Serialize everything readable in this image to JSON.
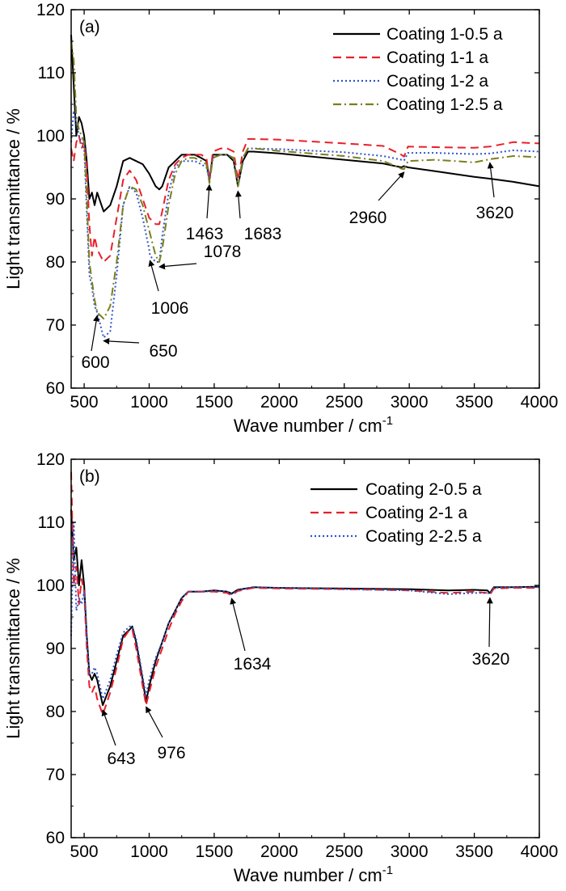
{
  "chart_data": [
    {
      "type": "line",
      "panel_label": "(a)",
      "xlabel": "Wave number / cm",
      "xlabel_sup": "-1",
      "ylabel": "Light transmittance / %",
      "xlim": [
        400,
        4000
      ],
      "ylim": [
        60,
        120
      ],
      "xticks": [
        500,
        1000,
        1500,
        2000,
        2500,
        3000,
        3500,
        4000
      ],
      "yticks": [
        60,
        70,
        80,
        90,
        100,
        110,
        120
      ],
      "grid": false,
      "legend": "top-right",
      "series": [
        {
          "name": "Coating 1-0.5 a",
          "color": "#000000",
          "dash": "solid",
          "x": [
            400,
            420,
            440,
            460,
            480,
            500,
            520,
            540,
            560,
            580,
            600,
            650,
            700,
            750,
            800,
            850,
            900,
            950,
            1000,
            1050,
            1078,
            1100,
            1150,
            1200,
            1250,
            1300,
            1350,
            1400,
            1440,
            1463,
            1490,
            1550,
            1600,
            1650,
            1683,
            1720,
            1760,
            1800,
            2000,
            2500,
            2800,
            2940,
            2960,
            2990,
            3200,
            3500,
            3620,
            3800,
            4000
          ],
          "y": [
            116,
            108,
            100,
            103,
            102,
            100,
            96,
            90,
            91,
            89,
            91,
            88,
            89,
            92,
            96,
            96.5,
            96,
            95.5,
            94,
            92,
            91.5,
            92,
            95,
            96,
            97,
            97,
            97,
            96.5,
            96,
            93,
            97,
            97,
            97,
            96,
            92,
            96,
            97.5,
            97.5,
            97.2,
            96.2,
            95.6,
            95,
            95.2,
            95,
            94.4,
            93.5,
            93.2,
            92.7,
            92
          ]
        },
        {
          "name": "Coating 1-1 a",
          "color": "#e8202a",
          "dash": "dashed",
          "x": [
            400,
            420,
            440,
            460,
            480,
            500,
            520,
            540,
            560,
            580,
            600,
            650,
            700,
            750,
            800,
            850,
            900,
            950,
            1000,
            1050,
            1078,
            1100,
            1150,
            1200,
            1250,
            1300,
            1350,
            1400,
            1440,
            1463,
            1490,
            1550,
            1600,
            1650,
            1683,
            1720,
            1760,
            1800,
            2000,
            2500,
            2800,
            2940,
            2960,
            2990,
            3200,
            3500,
            3620,
            3800,
            4000
          ],
          "y": [
            98,
            96,
            99,
            100,
            98,
            99,
            95,
            86,
            81,
            84,
            82,
            80,
            81,
            87,
            93,
            94.5,
            93,
            90,
            87,
            86,
            86,
            88,
            93,
            95.5,
            96.5,
            97,
            97,
            97,
            96.5,
            93,
            97.5,
            98,
            98,
            97.5,
            93,
            97.5,
            99.5,
            99.5,
            99.4,
            98.8,
            98.4,
            97,
            96.7,
            98.3,
            98.2,
            98.1,
            98.3,
            99,
            98.8
          ]
        },
        {
          "name": "Coating 1-2 a",
          "color": "#2e55c8",
          "dash": "dotted",
          "x": [
            400,
            420,
            440,
            460,
            480,
            500,
            520,
            540,
            560,
            580,
            600,
            650,
            700,
            750,
            800,
            850,
            900,
            950,
            1000,
            1006,
            1050,
            1078,
            1100,
            1150,
            1200,
            1250,
            1300,
            1350,
            1400,
            1440,
            1463,
            1490,
            1550,
            1600,
            1650,
            1683,
            1720,
            1760,
            1800,
            2000,
            2500,
            2800,
            2940,
            2960,
            2990,
            3200,
            3500,
            3620,
            3800,
            4000
          ],
          "y": [
            99,
            104,
            102,
            100,
            99,
            98,
            88,
            78,
            76,
            73,
            72,
            68,
            69,
            78,
            89,
            92,
            91,
            87,
            82,
            81,
            80,
            80,
            84,
            91,
            95,
            96,
            96,
            96,
            95.5,
            95,
            93,
            96.5,
            97,
            97,
            96.5,
            92,
            96.5,
            98,
            98,
            97.9,
            97.4,
            96.8,
            96.2,
            96.1,
            97.3,
            97.3,
            97.1,
            97.2,
            97.7,
            97.5
          ]
        },
        {
          "name": "Coating 1-2.5 a",
          "color": "#7a7f1e",
          "dash": "dashdot",
          "x": [
            400,
            420,
            440,
            460,
            480,
            500,
            520,
            540,
            560,
            580,
            600,
            650,
            700,
            750,
            800,
            850,
            900,
            950,
            1000,
            1050,
            1078,
            1100,
            1150,
            1200,
            1250,
            1300,
            1350,
            1400,
            1440,
            1463,
            1490,
            1550,
            1600,
            1650,
            1683,
            1720,
            1760,
            1800,
            2000,
            2500,
            2800,
            2940,
            2960,
            2990,
            3200,
            3500,
            3620,
            3800,
            4000
          ],
          "y": [
            115,
            112,
            103,
            101,
            100,
            99,
            90,
            80,
            77,
            74,
            72,
            71,
            73,
            80,
            89,
            92,
            91.5,
            89,
            85,
            81,
            80,
            82,
            89,
            94,
            96,
            96.5,
            96.5,
            96,
            95.5,
            92.5,
            96.5,
            97,
            97,
            96.5,
            92,
            96.5,
            98,
            98,
            97.6,
            96.8,
            96,
            94.8,
            94.7,
            96,
            96.2,
            95.8,
            96.3,
            96.8,
            96.6
          ]
        }
      ],
      "annotations": [
        {
          "text": "600",
          "x": 600,
          "y": 72
        },
        {
          "text": "650",
          "x": 650,
          "y": 68
        },
        {
          "text": "1006",
          "x": 1006,
          "y": 81
        },
        {
          "text": "1078",
          "x": 1078,
          "y": 80
        },
        {
          "text": "1463",
          "x": 1463,
          "y": 93
        },
        {
          "text": "1683",
          "x": 1683,
          "y": 92
        },
        {
          "text": "2960",
          "x": 2960,
          "y": 95
        },
        {
          "text": "3620",
          "x": 3620,
          "y": 96.5
        }
      ]
    },
    {
      "type": "line",
      "panel_label": "(b)",
      "xlabel": "Wave number / cm",
      "xlabel_sup": "-1",
      "ylabel": "Light transmittance / %",
      "xlim": [
        400,
        4000
      ],
      "ylim": [
        60,
        120
      ],
      "xticks": [
        500,
        1000,
        1500,
        2000,
        2500,
        3000,
        3500,
        4000
      ],
      "yticks": [
        60,
        70,
        80,
        90,
        100,
        110,
        120
      ],
      "grid": false,
      "legend": "top-right",
      "series": [
        {
          "name": "Coating 2-0.5 a",
          "color": "#000000",
          "dash": "solid",
          "x": [
            400,
            420,
            440,
            460,
            480,
            500,
            520,
            540,
            560,
            580,
            600,
            643,
            700,
            750,
            800,
            850,
            870,
            900,
            950,
            976,
            1000,
            1050,
            1100,
            1150,
            1200,
            1250,
            1300,
            1400,
            1500,
            1600,
            1634,
            1680,
            1800,
            2000,
            2500,
            3000,
            3300,
            3500,
            3600,
            3620,
            3650,
            3800,
            4000
          ],
          "y": [
            112,
            104,
            106,
            100,
            104,
            100,
            92,
            86,
            85,
            86,
            85,
            81,
            84,
            88,
            92,
            93,
            93.5,
            91,
            85,
            81.5,
            84,
            88,
            91,
            94,
            96,
            98,
            99,
            99,
            99.2,
            99,
            98.7,
            99.3,
            99.7,
            99.6,
            99.5,
            99.4,
            99.2,
            99.3,
            99.2,
            98.8,
            99.7,
            99.7,
            99.8
          ]
        },
        {
          "name": "Coating 2-1 a",
          "color": "#e8202a",
          "dash": "dashed",
          "x": [
            400,
            420,
            440,
            460,
            480,
            500,
            520,
            540,
            560,
            580,
            600,
            643,
            700,
            750,
            800,
            850,
            870,
            900,
            950,
            976,
            1000,
            1050,
            1100,
            1150,
            1200,
            1250,
            1300,
            1400,
            1500,
            1600,
            1634,
            1680,
            1800,
            2000,
            2500,
            3000,
            3300,
            3500,
            3600,
            3620,
            3650,
            3800,
            4000
          ],
          "y": [
            118,
            100,
            103,
            97,
            101,
            99,
            90,
            84,
            83,
            84,
            82,
            79.5,
            83,
            87,
            91.5,
            93,
            93,
            90,
            84,
            81,
            83,
            87,
            90,
            93,
            95.5,
            97.5,
            99,
            99,
            99,
            98.8,
            98.4,
            99.1,
            99.6,
            99.5,
            99.4,
            99.2,
            98.8,
            99,
            98.8,
            98.5,
            99.5,
            99.6,
            99.6
          ]
        },
        {
          "name": "Coating 2-2.5 a",
          "color": "#2e55c8",
          "dash": "dotted",
          "x": [
            400,
            420,
            440,
            460,
            480,
            500,
            520,
            540,
            560,
            580,
            600,
            643,
            700,
            750,
            800,
            850,
            870,
            900,
            950,
            976,
            1000,
            1050,
            1100,
            1150,
            1200,
            1250,
            1300,
            1400,
            1500,
            1600,
            1634,
            1680,
            1800,
            2000,
            2500,
            3000,
            3300,
            3500,
            3600,
            3620,
            3650,
            3800,
            4000
          ],
          "y": [
            92,
            110,
            96,
            98,
            97,
            99,
            92,
            86,
            86,
            87,
            86,
            82,
            85,
            89,
            92.5,
            93.5,
            93.5,
            91.5,
            85.5,
            82.5,
            85,
            88.5,
            91,
            94,
            96,
            98,
            99,
            99,
            99.1,
            99,
            98.6,
            99.2,
            99.7,
            99.6,
            99.4,
            99.2,
            98.6,
            98.8,
            98.8,
            98.7,
            99.6,
            99.7,
            99.7
          ]
        }
      ],
      "annotations": [
        {
          "text": "643",
          "x": 643,
          "y": 81
        },
        {
          "text": "976",
          "x": 976,
          "y": 81.5
        },
        {
          "text": "1634",
          "x": 1634,
          "y": 98.7
        },
        {
          "text": "3620",
          "x": 3620,
          "y": 98.8
        }
      ]
    }
  ]
}
